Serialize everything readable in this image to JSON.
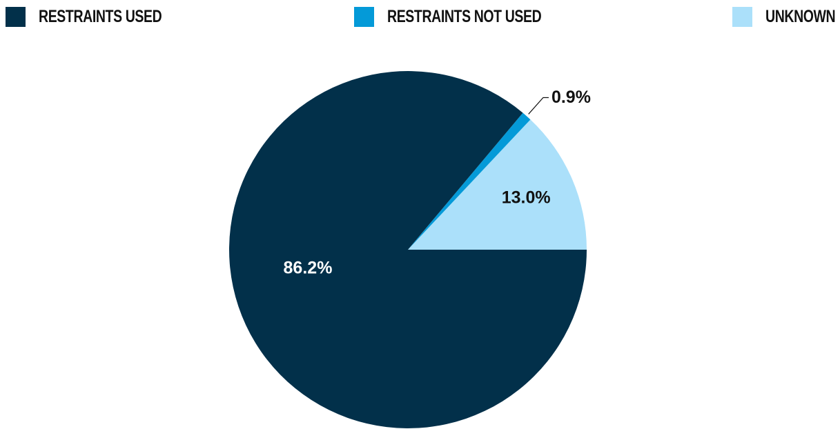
{
  "colors": {
    "restraints_used": "#02304a",
    "restraints_not_used": "#049ad8",
    "unknown": "#abe0fa"
  },
  "legend": {
    "items": [
      {
        "label": "RESTRAINTS USED"
      },
      {
        "label": "RESTRAINTS NOT USED"
      },
      {
        "label": "UNKNOWN"
      }
    ]
  },
  "chart_data": {
    "type": "pie",
    "title": "",
    "legend_position": "top",
    "slices": [
      {
        "label": "RESTRAINTS USED",
        "value": 86.2,
        "display": "86.2%",
        "color": "#02304a",
        "label_color": "#ffffff"
      },
      {
        "label": "RESTRAINTS NOT USED",
        "value": 0.9,
        "display": "0.9%",
        "color": "#049ad8",
        "label_color": "#111111"
      },
      {
        "label": "UNKNOWN",
        "value": 13.0,
        "display": "13.0%",
        "color": "#abe0fa",
        "label_color": "#111111"
      }
    ]
  }
}
